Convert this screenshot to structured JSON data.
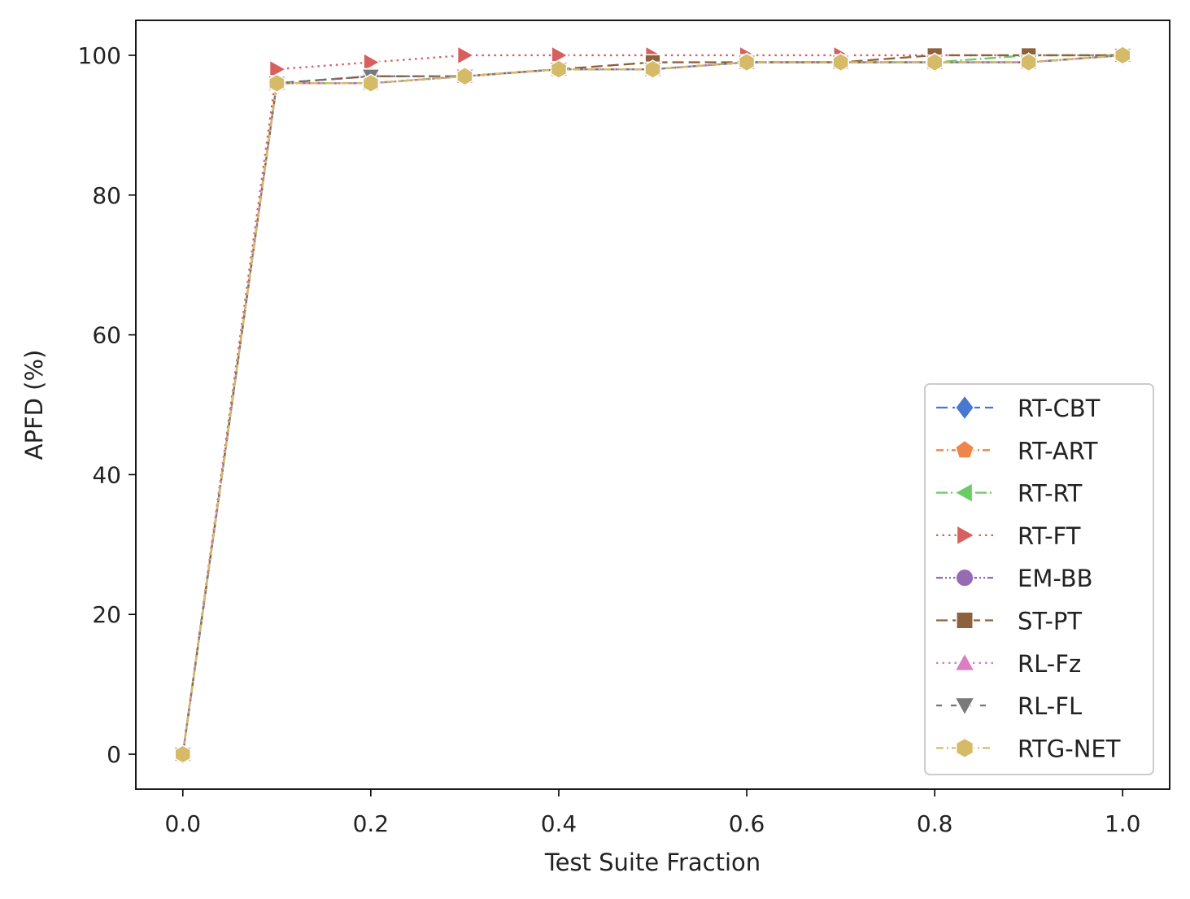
{
  "chart_data": {
    "type": "line",
    "title": "",
    "xlabel": "Test Suite Fraction",
    "ylabel": "APFD (%)",
    "xlim": [
      -0.05,
      1.05
    ],
    "ylim": [
      -5,
      105
    ],
    "xticks": [
      0.0,
      0.2,
      0.4,
      0.6,
      0.8,
      1.0
    ],
    "xtick_labels": [
      "0.0",
      "0.2",
      "0.4",
      "0.6",
      "0.8",
      "1.0"
    ],
    "yticks": [
      0,
      20,
      40,
      60,
      80,
      100
    ],
    "ytick_labels": [
      "0",
      "20",
      "40",
      "60",
      "80",
      "100"
    ],
    "grid": false,
    "legend_position": "lower-right",
    "x": [
      0.0,
      0.1,
      0.2,
      0.3,
      0.4,
      0.5,
      0.6,
      0.7,
      0.8,
      0.9,
      1.0
    ],
    "series": [
      {
        "name": "RT-CBT",
        "color": "#4878d0",
        "marker": "diamond",
        "dash": "dash",
        "values": [
          0,
          96,
          97,
          97,
          98,
          98,
          99,
          99,
          99,
          99,
          100
        ]
      },
      {
        "name": "RT-ART",
        "color": "#ee854a",
        "marker": "pentagon",
        "dash": "dashdot",
        "values": [
          0,
          96,
          96,
          97,
          98,
          98,
          99,
          99,
          99,
          99,
          100
        ]
      },
      {
        "name": "RT-RT",
        "color": "#6acc64",
        "marker": "triangle-left",
        "dash": "longdashdot",
        "values": [
          0,
          96,
          96,
          97,
          98,
          98,
          99,
          99,
          99,
          100,
          100
        ]
      },
      {
        "name": "RT-FT",
        "color": "#d65f5f",
        "marker": "triangle-right",
        "dash": "dot",
        "values": [
          0,
          98,
          99,
          100,
          100,
          100,
          100,
          100,
          100,
          100,
          100
        ]
      },
      {
        "name": "EM-BB",
        "color": "#956cb4",
        "marker": "circle",
        "dash": "dashdotdot",
        "values": [
          0,
          96,
          96,
          97,
          98,
          98,
          99,
          99,
          99,
          99,
          100
        ]
      },
      {
        "name": "ST-PT",
        "color": "#8c613c",
        "marker": "square",
        "dash": "dash",
        "values": [
          0,
          96,
          97,
          97,
          98,
          99,
          99,
          99,
          100,
          100,
          100
        ]
      },
      {
        "name": "RL-Fz",
        "color": "#dc7ec0",
        "marker": "triangle-up",
        "dash": "dot",
        "values": [
          0,
          96,
          96,
          97,
          98,
          98,
          99,
          99,
          99,
          99,
          100
        ]
      },
      {
        "name": "RL-FL",
        "color": "#797979",
        "marker": "triangle-down",
        "dash": "sparse",
        "values": [
          0,
          96,
          97,
          97,
          98,
          98,
          99,
          99,
          99,
          99,
          100
        ]
      },
      {
        "name": "RTG-NET",
        "color": "#d5bb67",
        "marker": "hexagon",
        "dash": "dashdot",
        "values": [
          0,
          96,
          96,
          97,
          98,
          98,
          99,
          99,
          99,
          99,
          100
        ]
      }
    ]
  }
}
